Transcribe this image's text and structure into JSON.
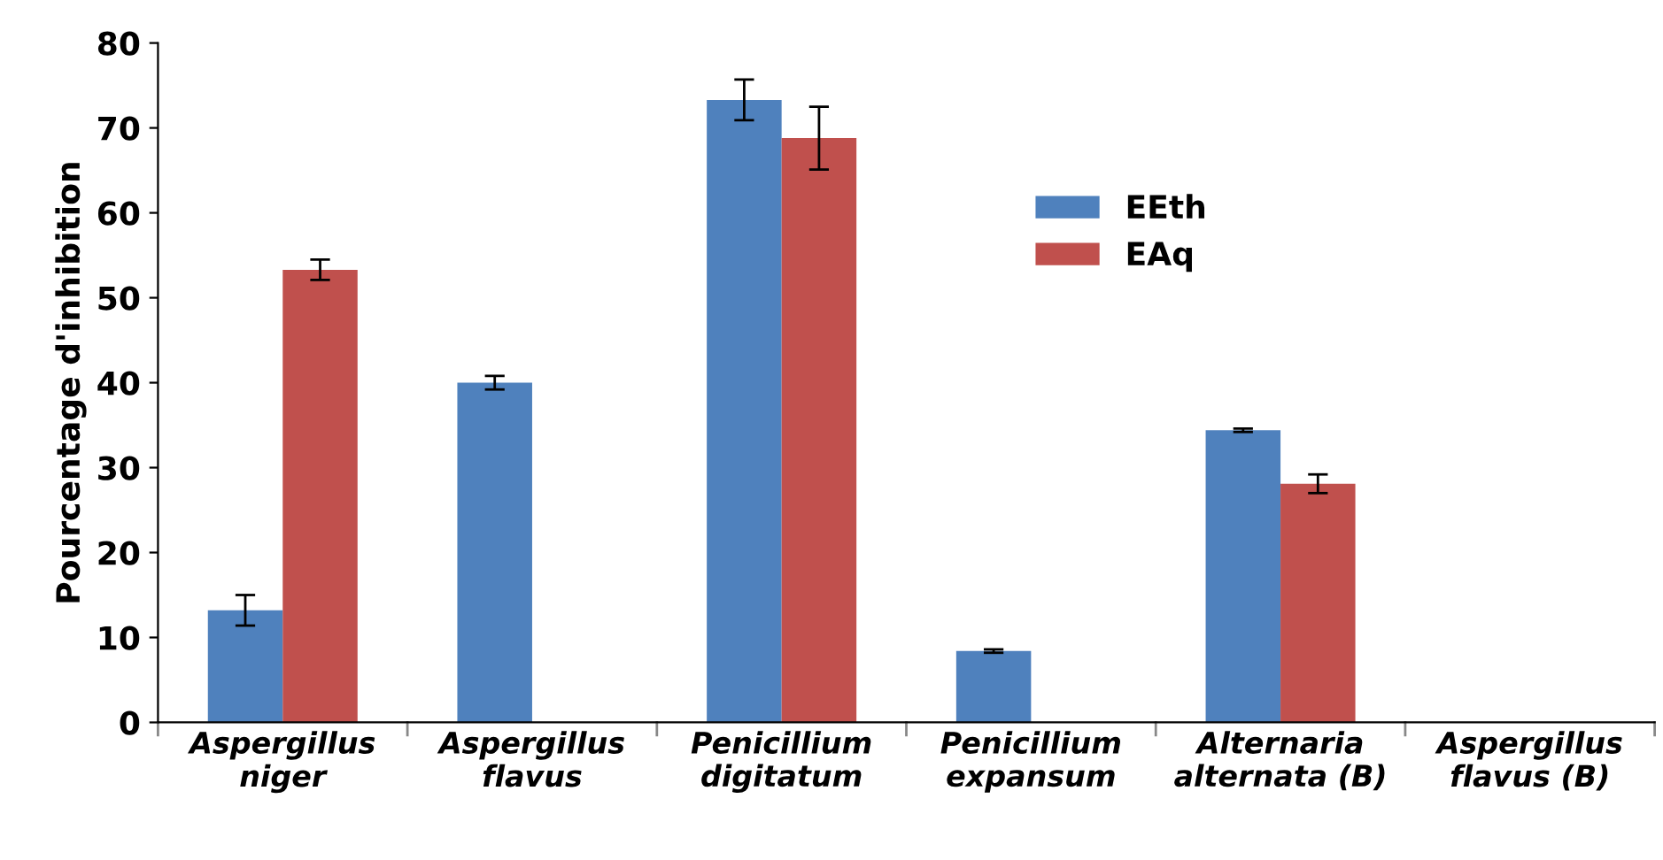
{
  "chart_data": {
    "type": "bar",
    "ylabel": "Pourcentage d'inhibition",
    "categories": [
      "Aspergillus\nniger",
      "Aspergillus\nflavus",
      "Penicillium\ndigitatum",
      "Penicillium\nexpansum",
      "Alternaria\nalternata (B)",
      "Aspergillus\nflavus (B)"
    ],
    "series": [
      {
        "name": "EEth",
        "color": "#4f81bd",
        "values": [
          13.2,
          40,
          73.3,
          8.4,
          34.4,
          null
        ],
        "errors": [
          1.8,
          0.8,
          2.4,
          0.2,
          0.2,
          null
        ]
      },
      {
        "name": "EAq",
        "color": "#c0504d",
        "values": [
          53.3,
          null,
          68.8,
          null,
          28.1,
          null
        ],
        "errors": [
          1.2,
          null,
          3.7,
          null,
          1.1,
          null
        ]
      }
    ],
    "ylim": [
      0,
      80
    ],
    "yticks": [
      0,
      10,
      20,
      30,
      40,
      50,
      60,
      70,
      80
    ],
    "grid": false,
    "legend": "top right"
  }
}
